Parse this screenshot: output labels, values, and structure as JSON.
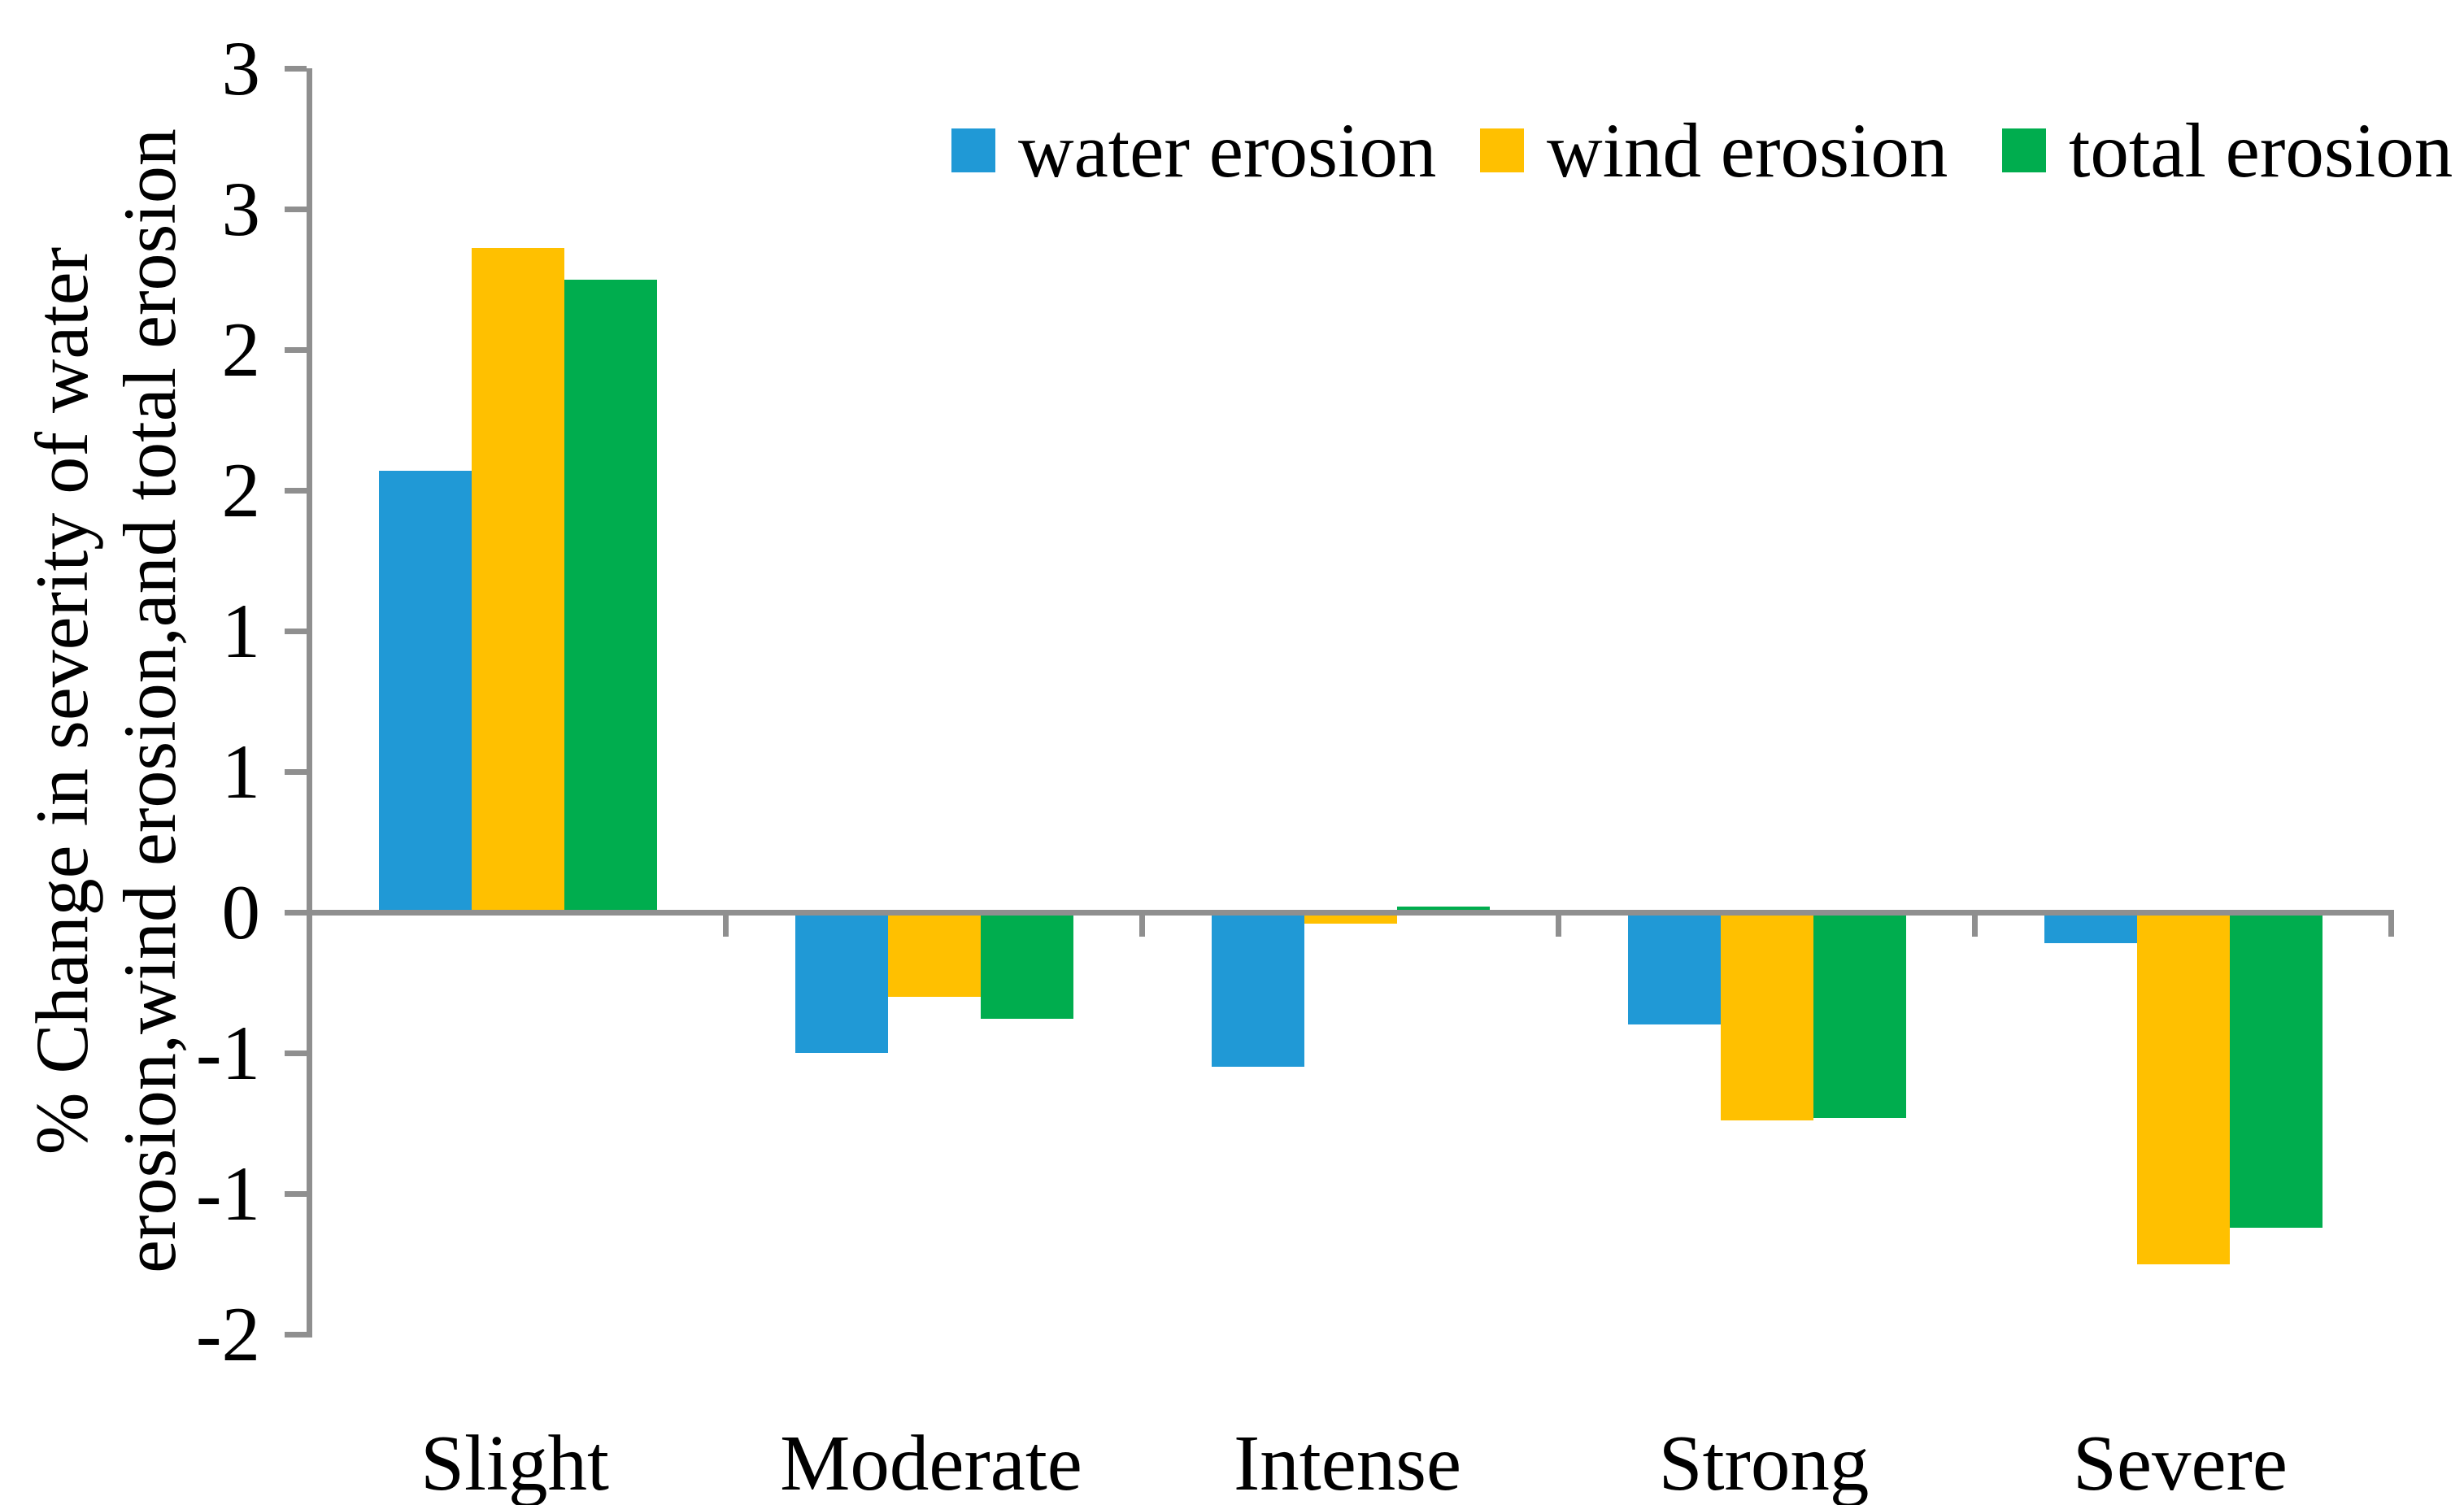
{
  "figure": {
    "background": "#ffffff",
    "text_color": "#000000",
    "axis_color": "#8f8f8f"
  },
  "y_axis": {
    "title_line1": "% Change in severity of water",
    "title_line2": "erosion,wind erosion,and total erosion",
    "min": -1.5,
    "max": 3.0,
    "step": 0.5,
    "ticks": [
      {
        "value": 3.0,
        "label": "3"
      },
      {
        "value": 2.5,
        "label": "3"
      },
      {
        "value": 2.0,
        "label": "2"
      },
      {
        "value": 1.5,
        "label": "2"
      },
      {
        "value": 1.0,
        "label": "1"
      },
      {
        "value": 0.5,
        "label": "1"
      },
      {
        "value": 0.0,
        "label": "0"
      },
      {
        "value": -0.5,
        "label": "-1"
      },
      {
        "value": -1.0,
        "label": "-1"
      },
      {
        "value": -1.5,
        "label": "-2"
      }
    ]
  },
  "x_axis": {
    "categories": [
      "Slight",
      "Moderate",
      "Intense",
      "Strong",
      "Severe"
    ]
  },
  "legend": [
    {
      "label": "water erosion",
      "color": "#2099d6"
    },
    {
      "label": "wind erosion",
      "color": "#ffc000"
    },
    {
      "label": "total erosion",
      "color": "#00ad4e"
    }
  ],
  "chart_data": {
    "type": "bar",
    "title": "",
    "xlabel": "",
    "ylabel": "% Change in severity of water erosion,wind erosion,and total erosion",
    "categories": [
      "Slight",
      "Moderate",
      "Intense",
      "Strong",
      "Severe"
    ],
    "series": [
      {
        "name": "water erosion",
        "color": "#2099d6",
        "values": [
          1.57,
          -0.5,
          -0.55,
          -0.4,
          -0.11
        ]
      },
      {
        "name": "wind erosion",
        "color": "#ffc000",
        "values": [
          2.36,
          -0.3,
          -0.04,
          -0.74,
          -1.25
        ]
      },
      {
        "name": "total erosion",
        "color": "#00ad4e",
        "values": [
          2.25,
          -0.38,
          0.02,
          -0.73,
          -1.12
        ]
      }
    ],
    "ylim": [
      -1.5,
      3.0
    ],
    "ytick_interval": 0.5,
    "ytick_label_format": "rounded to integer",
    "grid": false,
    "legend_position": "top-right-inside"
  }
}
